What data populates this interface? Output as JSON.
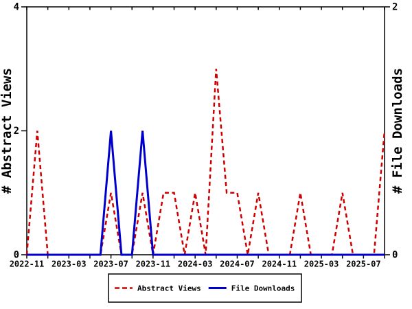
{
  "chart_data": {
    "type": "line",
    "x": [
      "2022-11",
      "2022-12",
      "2023-01",
      "2023-02",
      "2023-03",
      "2023-04",
      "2023-05",
      "2023-06",
      "2023-07",
      "2023-08",
      "2023-09",
      "2023-10",
      "2023-11",
      "2023-12",
      "2024-01",
      "2024-02",
      "2024-03",
      "2024-04",
      "2024-05",
      "2024-06",
      "2024-07",
      "2024-08",
      "2024-09",
      "2024-10",
      "2024-11",
      "2024-12",
      "2025-01",
      "2025-02",
      "2025-03",
      "2025-04",
      "2025-05",
      "2025-06",
      "2025-07",
      "2025-08",
      "2025-09"
    ],
    "series": [
      {
        "name": "Abstract Views",
        "axis": "left",
        "color": "#cc0000",
        "style": "dashed",
        "values": [
          0,
          2,
          0,
          0,
          0,
          0,
          0,
          0,
          1,
          0,
          0,
          1,
          0,
          1,
          1,
          0,
          1,
          0,
          3,
          1,
          1,
          0,
          1,
          0,
          0,
          0,
          1,
          0,
          0,
          0,
          1,
          0,
          0,
          0,
          2
        ]
      },
      {
        "name": "File Downloads",
        "axis": "right",
        "color": "#0000cc",
        "style": "solid",
        "values": [
          0,
          0,
          0,
          0,
          0,
          0,
          0,
          0,
          1,
          0,
          0,
          1,
          0,
          0,
          0,
          0,
          0,
          0,
          0,
          0,
          0,
          0,
          0,
          0,
          0,
          0,
          0,
          0,
          0,
          0,
          0,
          0,
          0,
          0,
          0
        ]
      }
    ],
    "left_axis": {
      "label": "# Abstract Views",
      "min": 0,
      "max": 4,
      "tick_values": [
        0,
        2,
        4
      ],
      "tick_labels": [
        "0",
        "2",
        "4"
      ]
    },
    "right_axis": {
      "label": "# File Downloads",
      "min": 0,
      "max": 2,
      "tick_values": [
        0,
        2
      ],
      "tick_labels": [
        "0",
        "2"
      ]
    },
    "x_axis": {
      "tick_every_months": 2,
      "label_every_months": 4,
      "labels_shown": [
        "2022-11",
        "2023-03",
        "2023-07",
        "2023-11",
        "2024-03",
        "2024-07",
        "2024-11",
        "2025-03",
        "2025-07"
      ]
    },
    "grid": "off",
    "legend": {
      "position": "bottom-center",
      "entries": [
        {
          "label": "Abstract Views",
          "color": "#cc0000",
          "style": "dashed"
        },
        {
          "label": "File Downloads",
          "color": "#0000cc",
          "style": "solid"
        }
      ]
    },
    "colors": {
      "axis": "#000000",
      "background": "#ffffff"
    }
  }
}
